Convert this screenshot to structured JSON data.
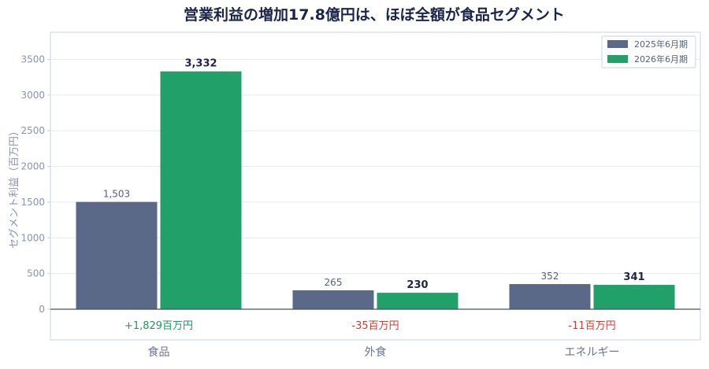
{
  "chart_data": {
    "type": "bar",
    "title": "営業利益の増加17.8億円は、ほぼ全額が食品セグメント",
    "ylabel": "セグメント利益（百万円）",
    "xlabel": "",
    "categories": [
      "食品",
      "外食",
      "エネルギー"
    ],
    "series": [
      {
        "name": "2025年6月期",
        "values": [
          1503,
          265,
          352
        ],
        "labels": [
          "1,503",
          "265",
          "352"
        ],
        "color": "#5a6987"
      },
      {
        "name": "2026年6月期",
        "values": [
          3332,
          230,
          341
        ],
        "labels": [
          "3,332",
          "230",
          "341"
        ],
        "color": "#21a06a"
      }
    ],
    "diff_labels": [
      "+1,829百万円",
      "-35百万円",
      "-11百万円"
    ],
    "diff_colors": [
      "#1e9a5e",
      "#d23a32",
      "#d23a32"
    ],
    "yticks": [
      0,
      500,
      1000,
      1500,
      2000,
      2500,
      3000,
      3500
    ],
    "ylim": [
      -430,
      3880
    ],
    "grid": true,
    "legend_position": "top-right",
    "colors": {
      "title": "#1c2549",
      "axis_text": "#8a93ad",
      "category_text": "#6b7490",
      "label_dark": "#1c2549",
      "label_muted": "#55607e",
      "grid": "#e7eaf2",
      "frame": "#c9d0e0",
      "zero_line": "#47506a"
    }
  }
}
